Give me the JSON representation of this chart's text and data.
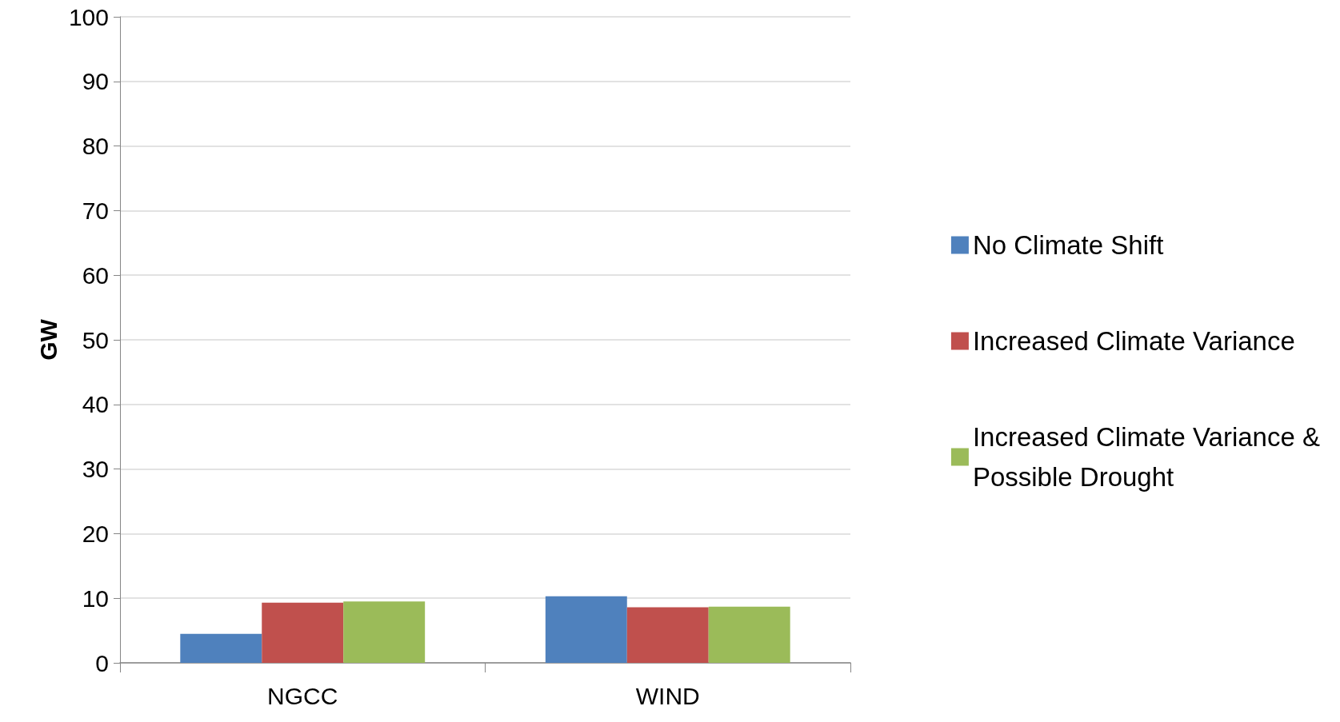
{
  "chart_data": {
    "type": "bar",
    "ylabel": "GW",
    "categories": [
      "NGCC",
      "WIND"
    ],
    "series": [
      {
        "name": "No Climate Shift",
        "color": "#4f81bd",
        "values": [
          4.5,
          10.3
        ]
      },
      {
        "name": "Increased Climate Variance",
        "color": "#c0504d",
        "values": [
          9.3,
          8.6
        ]
      },
      {
        "name": "Increased Climate Variance &\nPossible Drought",
        "color": "#9bbb59",
        "values": [
          9.5,
          8.7
        ]
      }
    ],
    "ylim": [
      0,
      100
    ],
    "yticks": [
      0,
      10,
      20,
      30,
      40,
      50,
      60,
      70,
      80,
      90,
      100
    ],
    "grid": "y",
    "legend": "right"
  }
}
